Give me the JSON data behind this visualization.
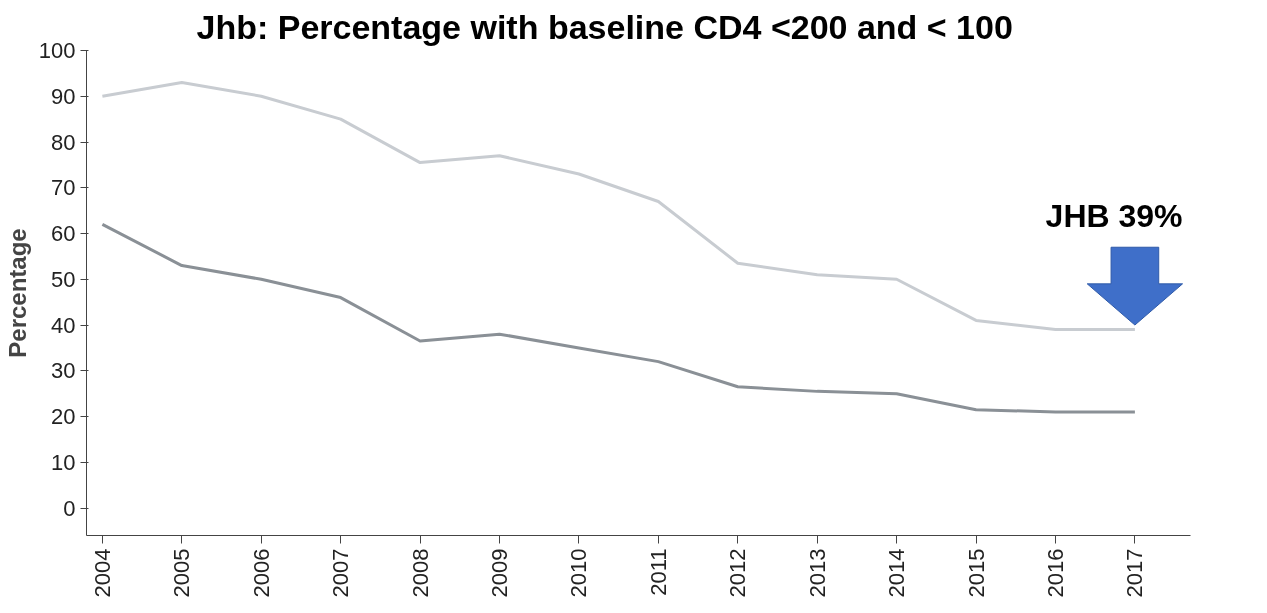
{
  "chart_data": {
    "type": "line",
    "title": "Jhb: Percentage with baseline CD4 <200 and < 100",
    "ylabel": "Percentage",
    "x": [
      2004,
      2005,
      2006,
      2007,
      2008,
      2009,
      2010,
      2011,
      2012,
      2013,
      2014,
      2015,
      2016,
      2017
    ],
    "series": [
      {
        "color": "#c8ccd1",
        "values": [
          90,
          93,
          90,
          85,
          75.5,
          77,
          73,
          67,
          53.5,
          51,
          50,
          41,
          39,
          39
        ]
      },
      {
        "color": "#8a9096",
        "values": [
          62,
          53,
          50,
          46,
          36.5,
          38,
          35,
          32,
          26.5,
          25.5,
          25,
          21.5,
          21,
          21
        ]
      }
    ],
    "xlim": [
      2003.8,
      2017.7
    ],
    "ylim": [
      -6,
      100
    ],
    "xticks": [
      2004,
      2005,
      2006,
      2007,
      2008,
      2009,
      2010,
      2011,
      2012,
      2013,
      2014,
      2015,
      2016,
      2017
    ],
    "yticks": [
      0,
      10,
      20,
      30,
      40,
      50,
      60,
      70,
      80,
      90,
      100
    ],
    "grid": false,
    "marker": "none",
    "line_style": "solid",
    "annotations": [
      "JHB 39%"
    ]
  }
}
